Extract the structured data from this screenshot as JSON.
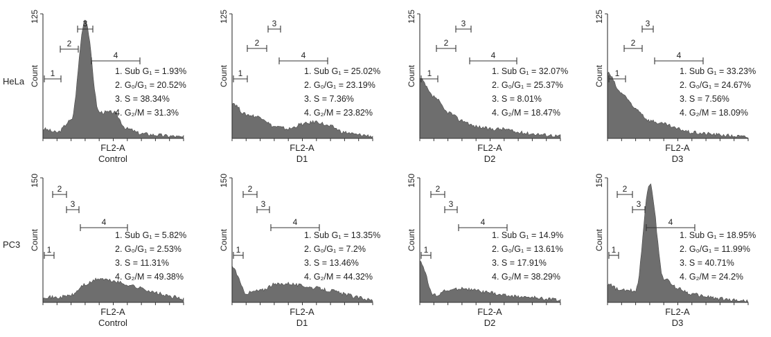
{
  "colors": {
    "histogram_fill": "#6e6e6e",
    "histogram_stroke": "#4a4a4a",
    "axis": "#333333",
    "text": "#222222"
  },
  "chart_data": [
    {
      "type": "area",
      "row": "HeLa",
      "condition": "Control",
      "ymax_label": "125",
      "ylabel": "Count",
      "xlabel": "FL2-A",
      "gate_labels": [
        "1",
        "2",
        "3",
        "4"
      ],
      "stats": [
        "1. Sub G₁ = 1.93%",
        "2. G₀/G₁ = 20.52%",
        "3. S = 38.34%",
        "4. G₂/M = 31.3%"
      ],
      "x": [
        0,
        0.1,
        0.2,
        0.3,
        0.4,
        0.5,
        0.6,
        0.7,
        0.8,
        0.9,
        1
      ],
      "y": [
        0.08,
        0.05,
        0.15,
        1.0,
        0.22,
        0.22,
        0.08,
        0.04,
        0.03,
        0.02,
        0.01
      ]
    },
    {
      "type": "area",
      "row": "HeLa",
      "condition": "D1",
      "ymax_label": "125",
      "ylabel": "Count",
      "xlabel": "FL2-A",
      "gate_labels": [
        "1",
        "2",
        "3",
        "4"
      ],
      "stats": [
        "1. Sub G₁ = 25.02%",
        "2. G₀/G₁ = 23.19%",
        "3. S = 7.36%",
        "4. G₂/M = 23.82%"
      ],
      "x": [
        0,
        0.1,
        0.2,
        0.3,
        0.4,
        0.5,
        0.6,
        0.7,
        0.8,
        0.9,
        1
      ],
      "y": [
        0.3,
        0.2,
        0.18,
        0.1,
        0.08,
        0.12,
        0.14,
        0.1,
        0.05,
        0.03,
        0.02
      ]
    },
    {
      "type": "area",
      "row": "HeLa",
      "condition": "D2",
      "ymax_label": "125",
      "ylabel": "Count",
      "xlabel": "FL2-A",
      "gate_labels": [
        "1",
        "2",
        "3",
        "4"
      ],
      "stats": [
        "1. Sub G₁ = 32.07%",
        "2. G₀/G₁ = 25.37%",
        "3. S = 8.01%",
        "4. G₂/M = 18.47%"
      ],
      "x": [
        0,
        0.1,
        0.2,
        0.3,
        0.4,
        0.5,
        0.6,
        0.7,
        0.8,
        0.9,
        1
      ],
      "y": [
        0.5,
        0.35,
        0.22,
        0.15,
        0.1,
        0.08,
        0.08,
        0.05,
        0.04,
        0.03,
        0.02
      ]
    },
    {
      "type": "area",
      "row": "HeLa",
      "condition": "D3",
      "ymax_label": "125",
      "ylabel": "Count",
      "xlabel": "FL2-A",
      "gate_labels": [
        "1",
        "2",
        "3",
        "4"
      ],
      "stats": [
        "1. Sub G₁ = 33.23%",
        "2. G₀/G₁ = 24.67%",
        "3. S = 7.56%",
        "4. G₂/M = 18.09%"
      ],
      "x": [
        0,
        0.1,
        0.2,
        0.3,
        0.4,
        0.5,
        0.6,
        0.7,
        0.8,
        0.9,
        1
      ],
      "y": [
        0.55,
        0.38,
        0.25,
        0.15,
        0.12,
        0.08,
        0.05,
        0.04,
        0.03,
        0.02,
        0.01
      ]
    },
    {
      "type": "area",
      "row": "PC3",
      "condition": "Control",
      "ymax_label": "150",
      "ylabel": "Count",
      "xlabel": "FL2-A",
      "gate_labels": [
        "1",
        "2",
        "3",
        "4"
      ],
      "stats": [
        "1. Sub G₁ = 5.82%",
        "2. G₀/G₁ = 2.53%",
        "3. S = 11.31%",
        "4. G₂/M = 49.38%"
      ],
      "x": [
        0,
        0.1,
        0.2,
        0.3,
        0.4,
        0.5,
        0.6,
        0.7,
        0.8,
        0.9,
        1
      ],
      "y": [
        0.05,
        0.04,
        0.06,
        0.15,
        0.2,
        0.18,
        0.15,
        0.12,
        0.08,
        0.05,
        0.03
      ]
    },
    {
      "type": "area",
      "row": "PC3",
      "condition": "D1",
      "ymax_label": "150",
      "ylabel": "Count",
      "xlabel": "FL2-A",
      "gate_labels": [
        "1",
        "2",
        "3",
        "4"
      ],
      "stats": [
        "1. Sub G₁ = 13.35%",
        "2. G₀/G₁ = 7.2%",
        "3. S = 13.46%",
        "4. G₂/M = 44.32%"
      ],
      "x": [
        0,
        0.1,
        0.2,
        0.3,
        0.4,
        0.5,
        0.6,
        0.7,
        0.8,
        0.9,
        1
      ],
      "y": [
        0.3,
        0.08,
        0.1,
        0.15,
        0.16,
        0.14,
        0.12,
        0.1,
        0.07,
        0.04,
        0.02
      ]
    },
    {
      "type": "area",
      "row": "PC3",
      "condition": "D2",
      "ymax_label": "150",
      "ylabel": "Count",
      "xlabel": "FL2-A",
      "gate_labels": [
        "1",
        "2",
        "3",
        "4"
      ],
      "stats": [
        "1. Sub G₁ = 14.9%",
        "2. G₀/G₁ = 13.61%",
        "3. S = 17.91%",
        "4. G₂/M = 38.29%"
      ],
      "x": [
        0,
        0.1,
        0.2,
        0.3,
        0.4,
        0.5,
        0.6,
        0.7,
        0.8,
        0.9,
        1
      ],
      "y": [
        0.35,
        0.06,
        0.1,
        0.12,
        0.1,
        0.08,
        0.06,
        0.05,
        0.04,
        0.03,
        0.02
      ]
    },
    {
      "type": "area",
      "row": "PC3",
      "condition": "D3",
      "ymax_label": "150",
      "ylabel": "Count",
      "xlabel": "FL2-A",
      "gate_labels": [
        "1",
        "2",
        "3",
        "4"
      ],
      "stats": [
        "1. Sub G₁ = 18.95%",
        "2. G₀/G₁ = 11.99%",
        "3. S = 40.71%",
        "4. G₂/M = 24.2%"
      ],
      "x": [
        0,
        0.1,
        0.2,
        0.3,
        0.4,
        0.5,
        0.6,
        0.7,
        0.8,
        0.9,
        1
      ],
      "y": [
        0.15,
        0.1,
        0.1,
        1.0,
        0.2,
        0.12,
        0.07,
        0.05,
        0.03,
        0.02,
        0.01
      ]
    }
  ]
}
